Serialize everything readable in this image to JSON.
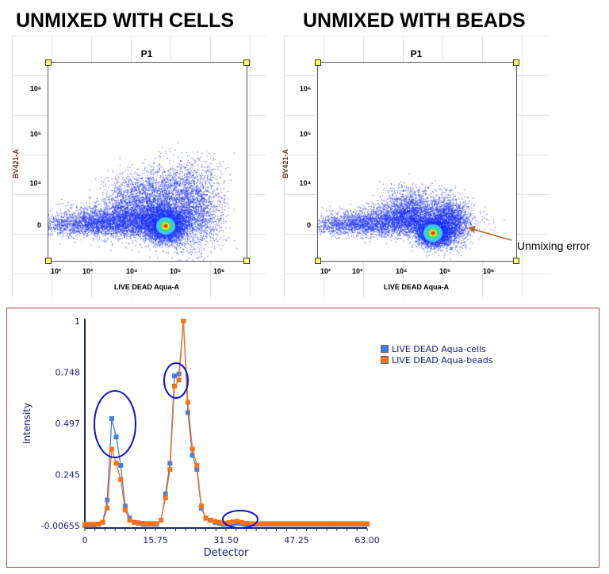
{
  "titles": {
    "left": "UNMIXED WITH CELLS",
    "right": "UNMIXED WITH BEADS"
  },
  "plots": [
    {
      "title": "P1",
      "x_label": "LIVE DEAD Aqua-A",
      "y_label": "BV421-A",
      "x_ticks": [
        "10²",
        "10³",
        "10⁴",
        "10⁵",
        "10⁶"
      ],
      "y_ticks": [
        "0",
        "10⁴",
        "10⁵",
        "10⁶"
      ],
      "type": "density dot plot"
    },
    {
      "title": "P1",
      "x_label": "LIVE DEAD Aqua-A",
      "y_label": "BV421-A",
      "x_ticks": [
        "10²",
        "10³",
        "10⁴",
        "10⁵",
        "10⁶"
      ],
      "y_ticks": [
        "0",
        "10⁴",
        "10⁵",
        "10⁶"
      ],
      "type": "density dot plot"
    }
  ],
  "annotation": {
    "text": "Unmixing error",
    "color": "#c0601a"
  },
  "chart_data": {
    "type": "line",
    "xlabel": "Detector",
    "ylabel": "Intensity",
    "x_ticks": [
      "0",
      "15.75",
      "31.50",
      "47.25",
      "63.00"
    ],
    "y_ticks": [
      "-0.00655",
      "0.245",
      "0.497",
      "0.748",
      "1"
    ],
    "xlim": [
      0,
      63
    ],
    "ylim": [
      -0.00655,
      1
    ],
    "legend_position": "top-right",
    "series": [
      {
        "name": "LIVE DEAD Aqua-cells",
        "color": "#3a7ee8",
        "values": [
          -0.005,
          -0.005,
          -0.004,
          0.0,
          0.01,
          0.12,
          0.52,
          0.43,
          0.29,
          0.09,
          0.03,
          0.01,
          0.005,
          0.0,
          0.0,
          0.0,
          0.0,
          0.02,
          0.15,
          0.3,
          0.73,
          0.74,
          1.0,
          0.55,
          0.34,
          0.27,
          0.08,
          0.03,
          0.02,
          0.01,
          0.005,
          0.0,
          0.0,
          0.003,
          0.005,
          0.003,
          0,
          0,
          0,
          0,
          0,
          0,
          0,
          0,
          0,
          0,
          0,
          0,
          0,
          0,
          0,
          0,
          0,
          0,
          0,
          0,
          0,
          0,
          0,
          0,
          0,
          0,
          0,
          0
        ]
      },
      {
        "name": "LIVE DEAD Aqua-beads",
        "color": "#ff7010",
        "values": [
          0.0,
          0.0,
          0.0,
          0.002,
          0.01,
          0.08,
          0.37,
          0.3,
          0.22,
          0.07,
          0.02,
          0.01,
          0.008,
          0.005,
          0.003,
          0.003,
          0.003,
          0.02,
          0.13,
          0.27,
          0.68,
          0.71,
          1.0,
          0.6,
          0.37,
          0.29,
          0.09,
          0.03,
          0.02,
          0.015,
          0.01,
          0.005,
          0.008,
          0.012,
          0.015,
          0.01,
          0.005,
          0.003,
          0.003,
          0.003,
          0.003,
          0.003,
          0.003,
          0.003,
          0.003,
          0.003,
          0.003,
          0.003,
          0.003,
          0.003,
          0.003,
          0.003,
          0.003,
          0.003,
          0.003,
          0.003,
          0.003,
          0.003,
          0.003,
          0.003,
          0.003,
          0.003,
          0.003,
          0.003
        ]
      }
    ],
    "highlight_circles_color": "#1010d0"
  }
}
